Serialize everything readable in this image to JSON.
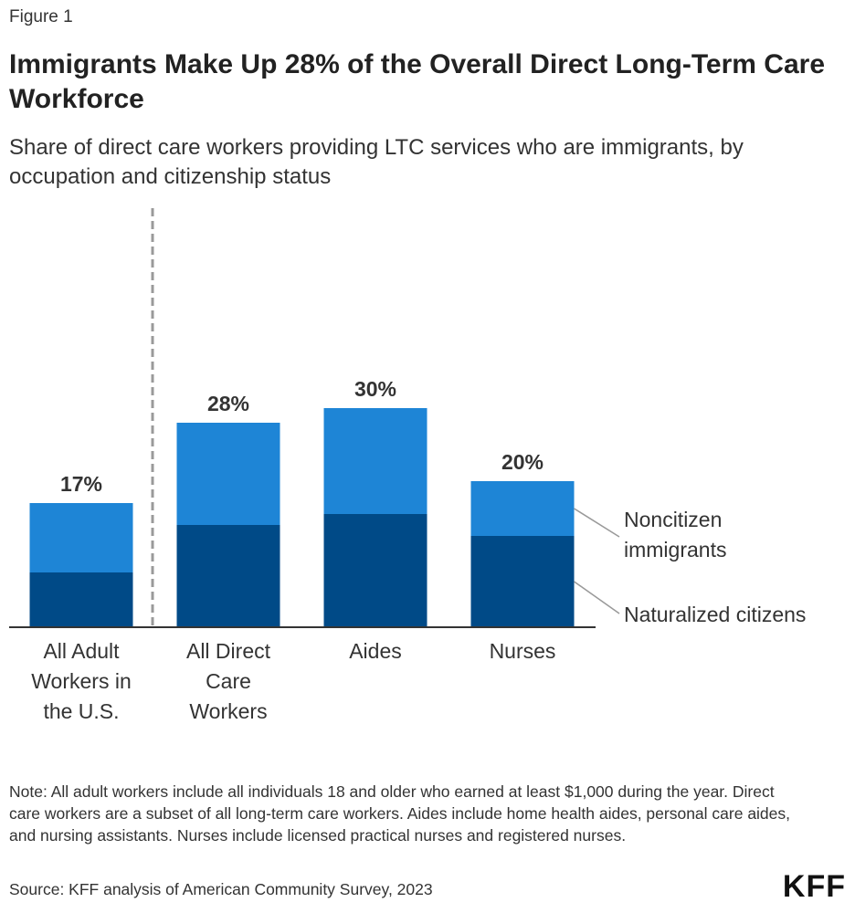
{
  "figure_label": "Figure 1",
  "title": "Immigrants Make Up 28% of the Overall Direct Long-Term Care Workforce",
  "subtitle": "Share of direct care workers providing LTC services who are immigrants, by occupation and citizenship status",
  "note": "Note: All adult workers include all individuals 18 and older who earned at least $1,000 during the year. Direct care workers are a subset of all long-term care workers. Aides include home health aides, personal care aides, and nursing assistants. Nurses include licensed practical nurses and registered nurses.",
  "source": "Source: KFF analysis of American Community Survey, 2023",
  "logo": "KFF",
  "colors": {
    "naturalized": "#004A87",
    "noncitizen": "#1E85D6",
    "axis": "#333333",
    "divider": "#9a9a9a"
  },
  "chart_data": {
    "type": "bar",
    "stacked": true,
    "title": "Immigrants Make Up 28% of the Overall Direct Long-Term Care Workforce",
    "xlabel": "",
    "ylabel": "",
    "ylim": [
      0,
      60
    ],
    "categories": [
      {
        "label_lines": [
          "All Adult",
          "Workers in",
          "the U.S."
        ]
      },
      {
        "label_lines": [
          "All Direct",
          "Care",
          "Workers"
        ]
      },
      {
        "label_lines": [
          "Aides"
        ]
      },
      {
        "label_lines": [
          "Nurses"
        ]
      }
    ],
    "series": [
      {
        "name": "Naturalized citizens",
        "values": [
          7.5,
          14,
          15.5,
          12.5
        ]
      },
      {
        "name": "Noncitizen immigrants",
        "values": [
          9.5,
          14,
          14.5,
          7.5
        ]
      }
    ],
    "totals": [
      17,
      28,
      30,
      20
    ],
    "total_labels": [
      "17%",
      "28%",
      "30%",
      "20%"
    ],
    "legend": [
      {
        "series": "Noncitizen immigrants",
        "label_lines": [
          "Noncitizen",
          "immigrants"
        ]
      },
      {
        "series": "Naturalized citizens",
        "label_lines": [
          "Naturalized citizens"
        ]
      }
    ],
    "legend_position": "right",
    "divider_after_category": 0
  }
}
